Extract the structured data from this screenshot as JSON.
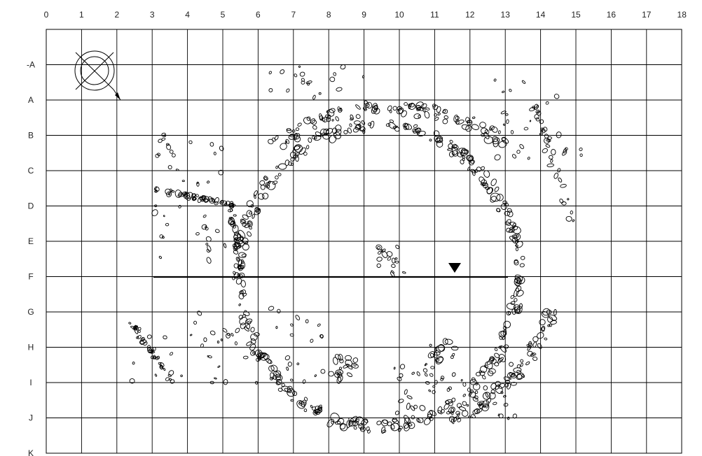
{
  "grid": {
    "columns": [
      "0",
      "1",
      "2",
      "3",
      "4",
      "5",
      "6",
      "7",
      "8",
      "9",
      "10",
      "11",
      "12",
      "13",
      "14",
      "15",
      "16",
      "17",
      "18"
    ],
    "rows": [
      "-A",
      "A",
      "B",
      "C",
      "D",
      "E",
      "F",
      "G",
      "H",
      "I",
      "J",
      "K"
    ]
  },
  "features": {
    "north_symbol": "compass-north-icon",
    "section_marker": "triangle-down-icon",
    "section_line": {
      "row": "F",
      "from_column": 3,
      "to_column": 13
    }
  },
  "colors": {
    "ink": "#000000",
    "background": "#ffffff"
  }
}
